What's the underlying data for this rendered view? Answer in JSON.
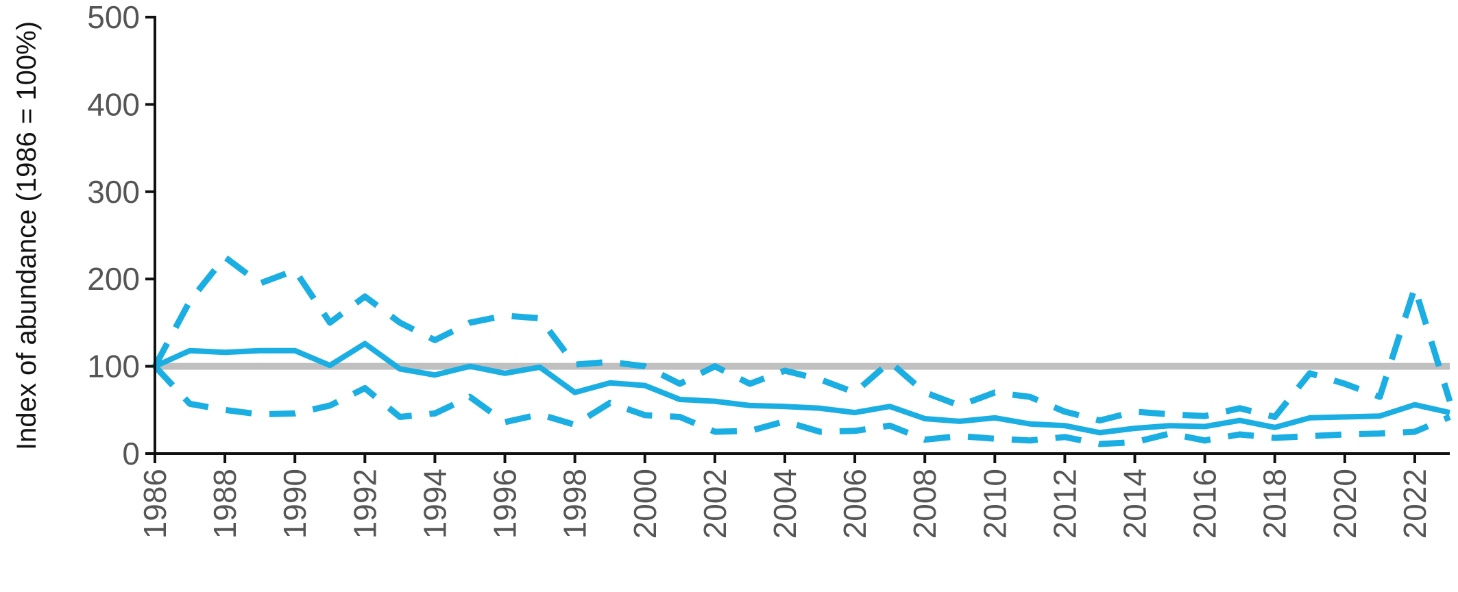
{
  "chart_data": {
    "type": "line",
    "title": "",
    "xlabel": "",
    "ylabel": "Index of abundance (1986 = 100%)",
    "xlim": [
      1986,
      2023
    ],
    "ylim": [
      0,
      500
    ],
    "x_ticks": [
      "1986",
      "1988",
      "1990",
      "1992",
      "1994",
      "1996",
      "1998",
      "2000",
      "2002",
      "2004",
      "2006",
      "2008",
      "2010",
      "2012",
      "2014",
      "2016",
      "2018",
      "2020",
      "2022"
    ],
    "y_ticks": [
      "0",
      "100",
      "200",
      "300",
      "400",
      "500"
    ],
    "reference_line": {
      "value": 100,
      "color": "#c0c0c0"
    },
    "colors": {
      "series": "#1aaee3",
      "axis": "#111111",
      "tick_text": "#555555"
    },
    "x": [
      1986,
      1987,
      1988,
      1989,
      1990,
      1991,
      1992,
      1993,
      1994,
      1995,
      1996,
      1997,
      1998,
      1999,
      2000,
      2001,
      2002,
      2003,
      2004,
      2005,
      2006,
      2007,
      2008,
      2009,
      2010,
      2011,
      2012,
      2013,
      2014,
      2015,
      2016,
      2017,
      2018,
      2019,
      2020,
      2021,
      2022,
      2023
    ],
    "series": [
      {
        "style": "solid",
        "values": [
          100,
          118,
          116,
          118,
          118,
          101,
          126,
          97,
          90,
          100,
          92,
          99,
          70,
          81,
          78,
          62,
          60,
          55,
          54,
          52,
          47,
          54,
          40,
          37,
          41,
          34,
          32,
          24,
          29,
          32,
          31,
          38,
          30,
          41,
          42,
          43,
          56,
          47
        ]
      },
      {
        "style": "dashed",
        "values": [
          100,
          175,
          225,
          195,
          210,
          150,
          180,
          150,
          130,
          150,
          158,
          155,
          102,
          105,
          100,
          80,
          100,
          80,
          95,
          85,
          70,
          105,
          70,
          55,
          70,
          65,
          48,
          38,
          48,
          45,
          43,
          52,
          42,
          92,
          80,
          65,
          190,
          60
        ]
      },
      {
        "style": "dashed",
        "values": [
          100,
          57,
          50,
          45,
          46,
          55,
          75,
          42,
          46,
          65,
          36,
          45,
          33,
          58,
          44,
          42,
          25,
          26,
          37,
          25,
          26,
          32,
          16,
          20,
          17,
          15,
          19,
          11,
          13,
          23,
          15,
          22,
          18,
          20,
          22,
          23,
          25,
          42
        ]
      }
    ]
  }
}
